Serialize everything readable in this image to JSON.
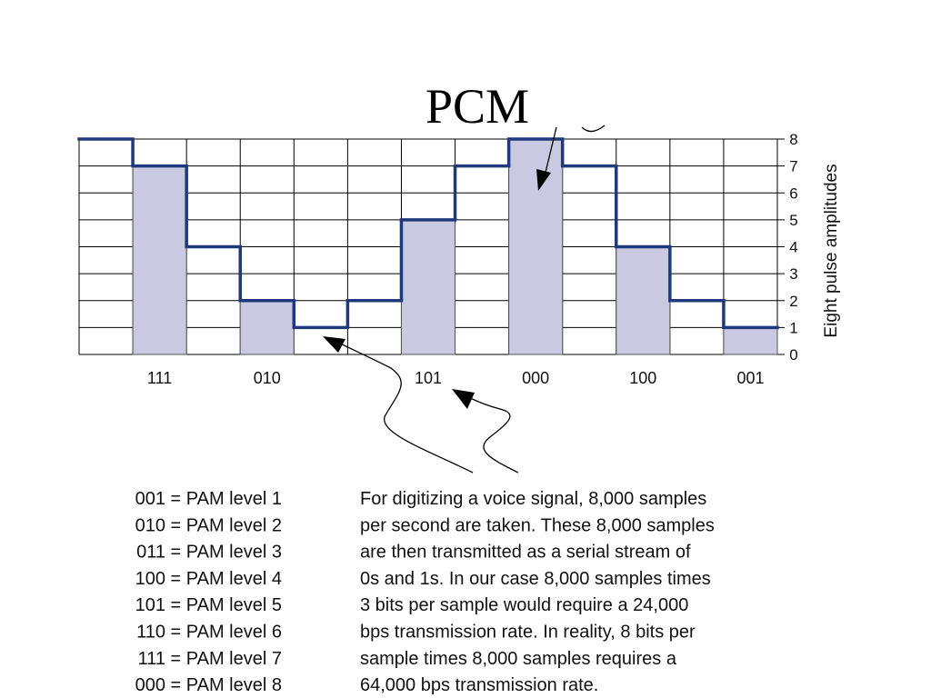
{
  "title": "PCM",
  "diagram": {
    "y_label": "Eight pulse amplitudes",
    "ylim": [
      0,
      8
    ],
    "yticks": [
      0,
      1,
      2,
      3,
      4,
      5,
      6,
      7,
      8
    ],
    "signal": [
      8,
      7,
      4,
      2,
      1,
      2,
      5,
      7,
      8,
      7,
      4,
      2,
      1
    ],
    "samples": [
      null,
      7,
      null,
      2,
      null,
      null,
      5,
      null,
      8,
      null,
      4,
      null,
      1
    ],
    "codes": [
      null,
      "111",
      null,
      "010",
      null,
      null,
      "101",
      null,
      "000",
      null,
      "100",
      null,
      "001"
    ]
  },
  "legend": [
    "001 = PAM level 1",
    "010 = PAM level 2",
    "011 = PAM level 3",
    "100 = PAM level 4",
    "101 = PAM level 5",
    "110 = PAM level 6",
    "111 = PAM level 7",
    "000 = PAM level 8"
  ],
  "description": [
    "For digitizing a voice signal, 8,000 samples",
    "per second are taken. These 8,000 samples",
    "are then transmitted as a serial stream of",
    "0s and 1s. In our case 8,000 samples times",
    "3 bits per sample would require a 24,000",
    "bps transmission rate. In reality, 8 bits per",
    "sample times 8,000 samples requires a",
    "64,000 bps transmission rate."
  ]
}
